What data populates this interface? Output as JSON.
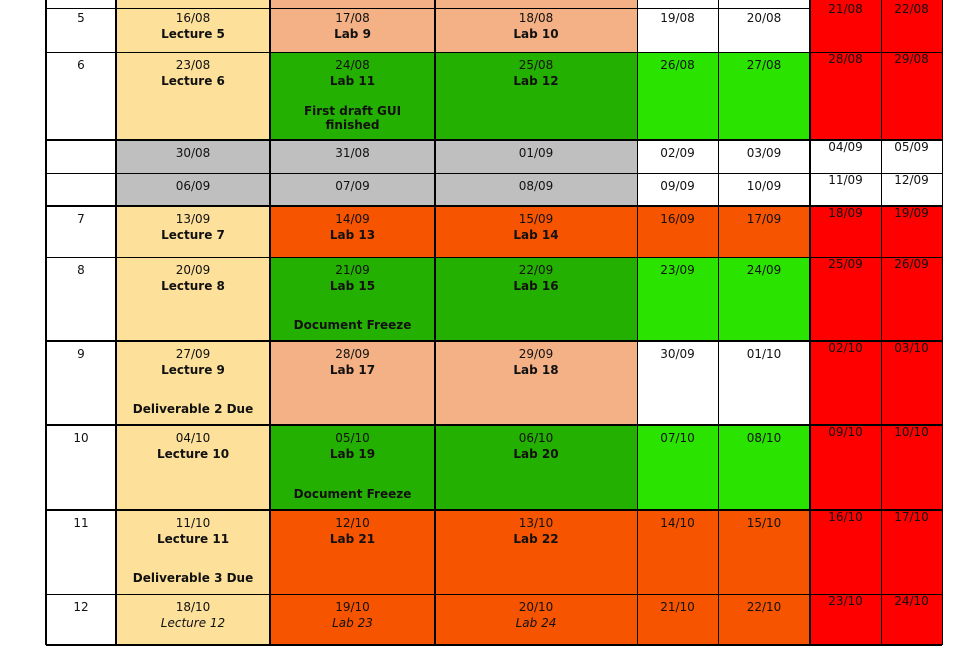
{
  "colors": {
    "lecture": "#fde09a",
    "lab_peach": "#f4b185",
    "lab_dkgreen": "#24b000",
    "lab_orange": "#f75400",
    "bright_green": "#2ae400",
    "gray": "#bfbfbf",
    "red": "#ff0000",
    "white": "#ffffff"
  },
  "rows": [
    {
      "week": "5",
      "theme": "peach",
      "wkend": "red",
      "mon": {
        "d": "16/08",
        "l": "Lecture 5"
      },
      "tue": {
        "d": "17/08",
        "l": "Lab 9"
      },
      "wed": {
        "d": "18/08",
        "l": "Lab 10"
      },
      "thu": {
        "d": "19/08"
      },
      "fri": {
        "d": "20/08"
      },
      "sat": "21/08",
      "sun": "22/08"
    },
    {
      "week": "6",
      "theme": "green",
      "wkend": "red",
      "mon": {
        "d": "23/08",
        "l": "Lecture 6"
      },
      "tue": {
        "d": "24/08",
        "l": "Lab 11",
        "n": "First draft GUI finished"
      },
      "wed": {
        "d": "25/08",
        "l": "Lab 12"
      },
      "thu": {
        "d": "26/08"
      },
      "fri": {
        "d": "27/08"
      },
      "sat": "28/08",
      "sun": "29/08"
    },
    {
      "week": "",
      "theme": "gray",
      "wkend": "white",
      "mon": {
        "d": "30/08"
      },
      "tue": {
        "d": "31/08"
      },
      "wed": {
        "d": "01/09"
      },
      "thu": {
        "d": "02/09"
      },
      "fri": {
        "d": "03/09"
      },
      "sat": "04/09",
      "sun": "05/09"
    },
    {
      "week": "",
      "theme": "gray",
      "wkend": "white",
      "mon": {
        "d": "06/09"
      },
      "tue": {
        "d": "07/09"
      },
      "wed": {
        "d": "08/09"
      },
      "thu": {
        "d": "09/09"
      },
      "fri": {
        "d": "10/09"
      },
      "sat": "11/09",
      "sun": "12/09"
    },
    {
      "week": "7",
      "theme": "orange",
      "wkend": "red",
      "mon": {
        "d": "13/09",
        "l": "Lecture 7"
      },
      "tue": {
        "d": "14/09",
        "l": "Lab 13"
      },
      "wed": {
        "d": "15/09",
        "l": "Lab 14"
      },
      "thu": {
        "d": "16/09"
      },
      "fri": {
        "d": "17/09"
      },
      "sat": "18/09",
      "sun": "19/09"
    },
    {
      "week": "8",
      "theme": "green",
      "wkend": "red",
      "mon": {
        "d": "20/09",
        "l": "Lecture 8"
      },
      "tue": {
        "d": "21/09",
        "l": "Lab 15",
        "n": "Document Freeze"
      },
      "wed": {
        "d": "22/09",
        "l": "Lab 16"
      },
      "thu": {
        "d": "23/09"
      },
      "fri": {
        "d": "24/09"
      },
      "sat": "25/09",
      "sun": "26/09"
    },
    {
      "week": "9",
      "theme": "peach",
      "wkend": "red",
      "mon": {
        "d": "27/09",
        "l": "Lecture 9",
        "n": "Deliverable 2 Due"
      },
      "tue": {
        "d": "28/09",
        "l": "Lab 17"
      },
      "wed": {
        "d": "29/09",
        "l": "Lab 18"
      },
      "thu": {
        "d": "30/09"
      },
      "fri": {
        "d": "01/10"
      },
      "sat": "02/10",
      "sun": "03/10"
    },
    {
      "week": "10",
      "theme": "green",
      "wkend": "red",
      "mon": {
        "d": "04/10",
        "l": "Lecture 10"
      },
      "tue": {
        "d": "05/10",
        "l": "Lab 19",
        "n": "Document Freeze"
      },
      "wed": {
        "d": "06/10",
        "l": "Lab 20"
      },
      "thu": {
        "d": "07/10"
      },
      "fri": {
        "d": "08/10"
      },
      "sat": "09/10",
      "sun": "10/10"
    },
    {
      "week": "11",
      "theme": "orange",
      "wkend": "red",
      "mon": {
        "d": "11/10",
        "l": "Lecture 11",
        "n": "Deliverable 3 Due"
      },
      "tue": {
        "d": "12/10",
        "l": "Lab 21"
      },
      "wed": {
        "d": "13/10",
        "l": "Lab 22"
      },
      "thu": {
        "d": "14/10"
      },
      "fri": {
        "d": "15/10"
      },
      "sat": "16/10",
      "sun": "17/10"
    },
    {
      "week": "12",
      "theme": "orange",
      "wkend": "red",
      "italic": true,
      "mon": {
        "d": "18/10",
        "l": "Lecture 12"
      },
      "tue": {
        "d": "19/10",
        "l": "Lab 23"
      },
      "wed": {
        "d": "20/10",
        "l": "Lab 24"
      },
      "thu": {
        "d": "21/10"
      },
      "fri": {
        "d": "22/10"
      },
      "sat": "23/10",
      "sun": "24/10"
    }
  ]
}
